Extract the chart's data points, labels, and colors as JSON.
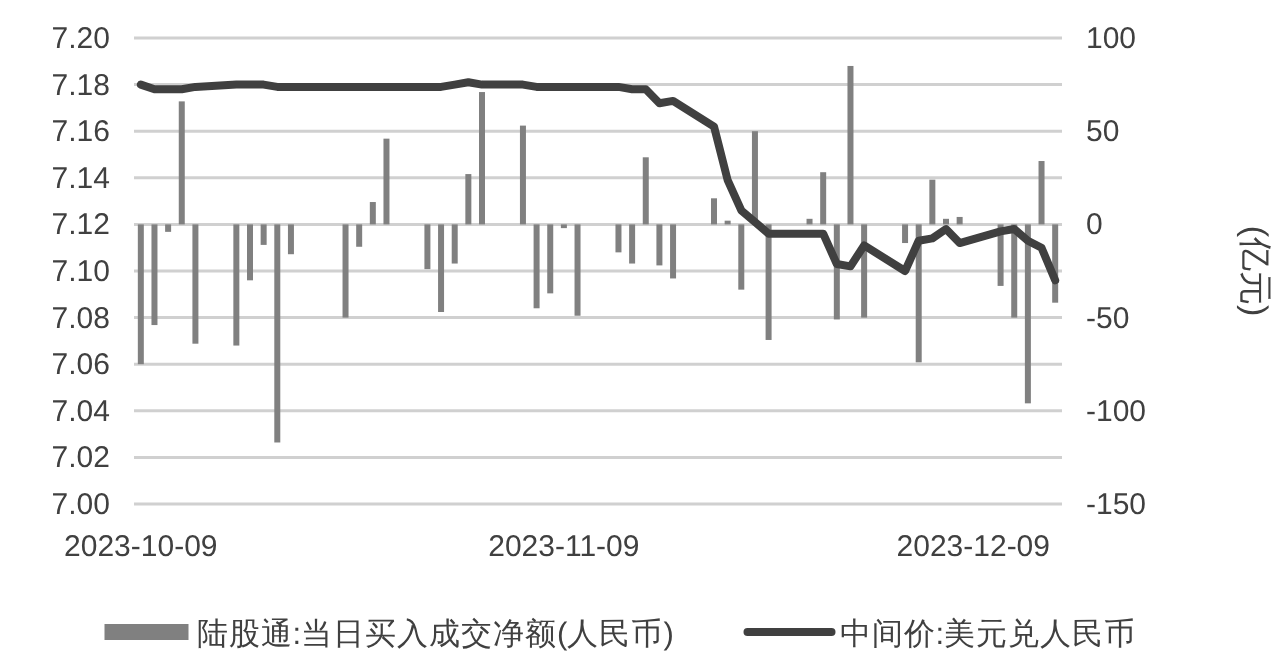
{
  "chart_data": {
    "type": "bar",
    "y2label": "(亿元)",
    "x": [
      "2023-10-09",
      "2023-10-10",
      "2023-10-11",
      "2023-10-12",
      "2023-10-13",
      "2023-10-16",
      "2023-10-17",
      "2023-10-18",
      "2023-10-19",
      "2023-10-20",
      "2023-10-23",
      "2023-10-24",
      "2023-10-25",
      "2023-10-26",
      "2023-10-27",
      "2023-10-30",
      "2023-10-31",
      "2023-11-01",
      "2023-11-02",
      "2023-11-03",
      "2023-11-06",
      "2023-11-07",
      "2023-11-08",
      "2023-11-09",
      "2023-11-10",
      "2023-11-13",
      "2023-11-14",
      "2023-11-15",
      "2023-11-16",
      "2023-11-17",
      "2023-11-20",
      "2023-11-21",
      "2023-11-22",
      "2023-11-23",
      "2023-11-24",
      "2023-11-27",
      "2023-11-28",
      "2023-11-29",
      "2023-11-30",
      "2023-12-01",
      "2023-12-04",
      "2023-12-05",
      "2023-12-06",
      "2023-12-07",
      "2023-12-08",
      "2023-12-11",
      "2023-12-12",
      "2023-12-13",
      "2023-12-14",
      "2023-12-15"
    ],
    "series": [
      {
        "name": "陆股通:当日买入成交净额(人民币)",
        "axis": "y2",
        "color": "#808080",
        "values": [
          -75,
          -54,
          -4,
          66,
          -64,
          -65,
          -30,
          -11,
          -117,
          -16,
          null,
          -50,
          -12,
          12,
          46,
          -24,
          -47,
          -21,
          27,
          71,
          53,
          -45,
          -37,
          -2,
          -49,
          -15,
          -21,
          36,
          -22,
          -29,
          14,
          2,
          -35,
          50,
          -62,
          3,
          28,
          -51,
          85,
          -50,
          -10,
          -74,
          24,
          3,
          4,
          -33,
          -50,
          -96,
          34,
          -42
        ]
      },
      {
        "name": "中间价:美元兑人民币",
        "type": "line",
        "axis": "y",
        "color": "#404040",
        "values": [
          7.18,
          7.178,
          7.178,
          7.178,
          7.179,
          7.18,
          7.18,
          7.18,
          7.179,
          7.179,
          7.179,
          7.179,
          7.179,
          7.179,
          7.179,
          7.179,
          7.179,
          7.18,
          7.181,
          7.18,
          7.18,
          7.179,
          7.179,
          7.179,
          7.179,
          7.179,
          7.178,
          7.178,
          7.172,
          7.173,
          7.162,
          7.139,
          7.126,
          7.121,
          7.116,
          7.116,
          7.116,
          7.103,
          7.102,
          7.111,
          7.1,
          7.113,
          7.114,
          7.118,
          7.112,
          7.117,
          7.118,
          7.113,
          7.11,
          7.096
        ]
      }
    ],
    "xlim": [
      "2023-10-08T12:00",
      "2023-12-15T12:00"
    ],
    "xticks": [
      "2023-10-09",
      "2023-11-09",
      "2023-12-09"
    ],
    "ylim": [
      7.0,
      7.2
    ],
    "yticks": [
      {
        "value": 7.0,
        "label": "7.00"
      },
      {
        "value": 7.02,
        "label": "7.02"
      },
      {
        "value": 7.04,
        "label": "7.04"
      },
      {
        "value": 7.06,
        "label": "7.06"
      },
      {
        "value": 7.08,
        "label": "7.08"
      },
      {
        "value": 7.1,
        "label": "7.10"
      },
      {
        "value": 7.12,
        "label": "7.12"
      },
      {
        "value": 7.14,
        "label": "7.14"
      },
      {
        "value": 7.16,
        "label": "7.16"
      },
      {
        "value": 7.18,
        "label": "7.18"
      },
      {
        "value": 7.2,
        "label": "7.20"
      }
    ],
    "y2lim": [
      -150,
      100
    ],
    "y2ticks": [
      -150,
      -100,
      -50,
      0,
      50,
      100
    ],
    "grid": "y",
    "legend": "bottom"
  }
}
